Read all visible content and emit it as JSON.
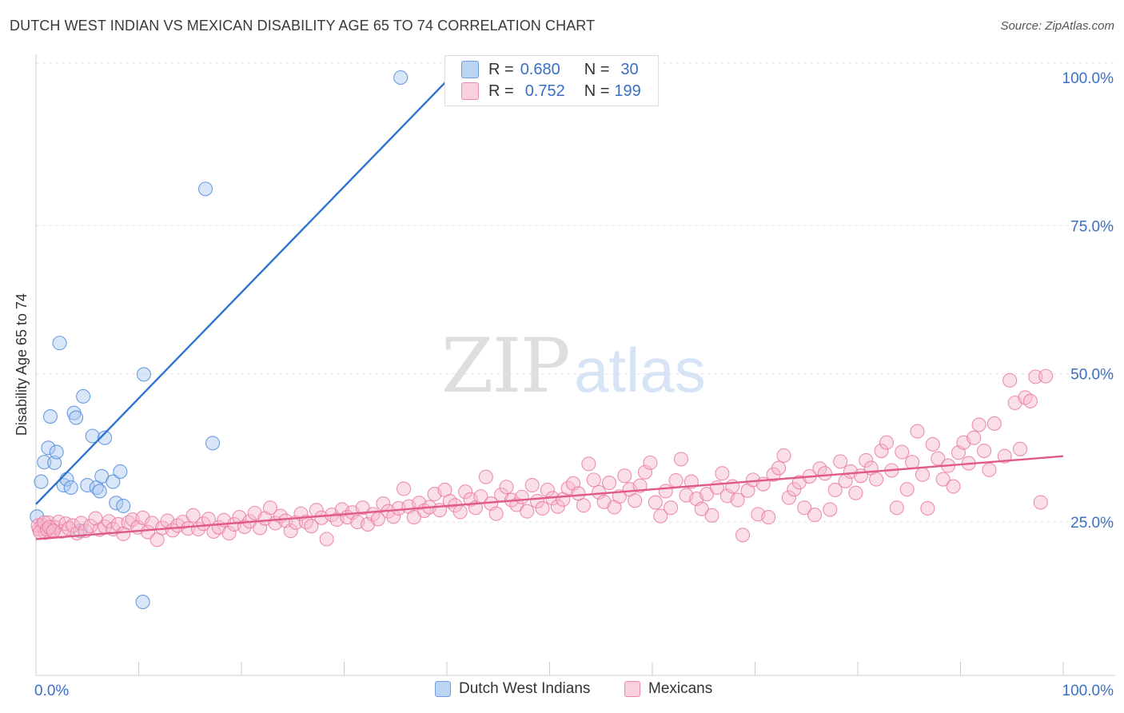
{
  "header": {
    "title": "DUTCH WEST INDIAN VS MEXICAN DISABILITY AGE 65 TO 74 CORRELATION CHART",
    "source": "Source: ZipAtlas.com"
  },
  "watermark": {
    "zip": "ZIP",
    "atlas": "atlas"
  },
  "legend": {
    "rows": [
      {
        "r_label": "R =",
        "r_value": "0.680",
        "n_label": "N =",
        "n_value": "30",
        "color": "#a8c8f0"
      },
      {
        "r_label": "R =",
        "r_value": "0.752",
        "n_label": "N =",
        "n_value": "199",
        "color": "#f7b8cc"
      }
    ]
  },
  "bottom_legend": [
    {
      "label": "Dutch West Indians",
      "color": "#a8c8f0"
    },
    {
      "label": "Mexicans",
      "color": "#f7b8cc"
    }
  ],
  "chart_data": {
    "type": "scatter",
    "ylabel": "Disability Age 65 to 74",
    "xlim": [
      0,
      100
    ],
    "ylim": [
      0,
      100
    ],
    "x_tick_labels": [
      "0.0%",
      "100.0%"
    ],
    "y_ticks": [
      25,
      50,
      75,
      100
    ],
    "y_tick_labels": [
      "25.0%",
      "50.0%",
      "75.0%",
      "100.0%"
    ],
    "grid": true,
    "series": [
      {
        "name": "Dutch West Indians",
        "color": "#4a86d8",
        "line_color": "#2f74d0",
        "trend": {
          "x": [
            0,
            40.3
          ],
          "y": [
            28.0,
            100.0
          ]
        },
        "points": [
          [
            0.5,
            31.8
          ],
          [
            0.8,
            35.1
          ],
          [
            1.2,
            37.5
          ],
          [
            1.4,
            42.8
          ],
          [
            1.8,
            35.0
          ],
          [
            2.0,
            36.8
          ],
          [
            2.3,
            55.2
          ],
          [
            2.7,
            31.2
          ],
          [
            3.0,
            32.2
          ],
          [
            3.4,
            30.8
          ],
          [
            3.7,
            43.4
          ],
          [
            3.9,
            42.6
          ],
          [
            4.3,
            23.5
          ],
          [
            4.6,
            46.2
          ],
          [
            5.0,
            31.2
          ],
          [
            5.5,
            39.5
          ],
          [
            5.9,
            30.8
          ],
          [
            6.2,
            30.2
          ],
          [
            6.4,
            32.7
          ],
          [
            6.7,
            39.2
          ],
          [
            7.5,
            31.8
          ],
          [
            7.8,
            28.2
          ],
          [
            8.2,
            33.5
          ],
          [
            8.5,
            27.7
          ],
          [
            10.5,
            49.9
          ],
          [
            10.4,
            11.5
          ],
          [
            16.5,
            81.2
          ],
          [
            17.2,
            38.3
          ],
          [
            35.5,
            100.0
          ],
          [
            0.1,
            25.9
          ]
        ]
      },
      {
        "name": "Mexicans",
        "color": "#e8779b",
        "line_color": "#e05a88",
        "trend": {
          "x": [
            0,
            100
          ],
          "y": [
            22.1,
            36.1
          ]
        },
        "points": [
          [
            0.3,
            23.8
          ],
          [
            0.6,
            24.5
          ],
          [
            0.9,
            23.2
          ],
          [
            1.2,
            24.9
          ],
          [
            1.5,
            23.6
          ],
          [
            1.9,
            24.1
          ],
          [
            2.2,
            25.0
          ],
          [
            2.5,
            23.4
          ],
          [
            2.9,
            24.7
          ],
          [
            3.2,
            23.9
          ],
          [
            3.6,
            24.4
          ],
          [
            4.0,
            23.1
          ],
          [
            4.4,
            24.8
          ],
          [
            4.8,
            23.5
          ],
          [
            5.3,
            24.3
          ],
          [
            5.8,
            25.6
          ],
          [
            6.2,
            23.7
          ],
          [
            6.7,
            24.2
          ],
          [
            7.1,
            25.1
          ],
          [
            7.5,
            23.8
          ],
          [
            8.0,
            24.6
          ],
          [
            8.5,
            23.0
          ],
          [
            9.0,
            24.9
          ],
          [
            9.4,
            25.4
          ],
          [
            9.9,
            24.1
          ],
          [
            10.4,
            25.7
          ],
          [
            10.9,
            23.3
          ],
          [
            11.3,
            24.8
          ],
          [
            11.8,
            22.0
          ],
          [
            12.3,
            24.0
          ],
          [
            12.8,
            25.2
          ],
          [
            13.3,
            23.6
          ],
          [
            13.8,
            24.4
          ],
          [
            14.3,
            25.0
          ],
          [
            14.8,
            23.9
          ],
          [
            15.3,
            26.1
          ],
          [
            15.8,
            23.8
          ],
          [
            16.3,
            24.7
          ],
          [
            16.8,
            25.5
          ],
          [
            17.3,
            23.4
          ],
          [
            17.8,
            24.1
          ],
          [
            18.3,
            25.3
          ],
          [
            18.8,
            23.1
          ],
          [
            19.3,
            24.6
          ],
          [
            19.8,
            25.8
          ],
          [
            20.3,
            24.2
          ],
          [
            20.8,
            25.1
          ],
          [
            21.3,
            26.5
          ],
          [
            21.8,
            24.0
          ],
          [
            22.3,
            25.6
          ],
          [
            22.8,
            27.4
          ],
          [
            23.3,
            24.8
          ],
          [
            23.8,
            26.0
          ],
          [
            24.3,
            25.2
          ],
          [
            24.8,
            23.5
          ],
          [
            25.3,
            24.9
          ],
          [
            25.8,
            26.4
          ],
          [
            26.3,
            25.0
          ],
          [
            26.8,
            24.3
          ],
          [
            27.3,
            27.0
          ],
          [
            27.8,
            25.7
          ],
          [
            28.3,
            22.1
          ],
          [
            28.8,
            26.2
          ],
          [
            29.3,
            25.4
          ],
          [
            29.8,
            27.1
          ],
          [
            30.3,
            25.8
          ],
          [
            30.8,
            26.6
          ],
          [
            31.3,
            25.0
          ],
          [
            31.8,
            27.4
          ],
          [
            32.3,
            24.6
          ],
          [
            32.8,
            26.3
          ],
          [
            33.3,
            25.5
          ],
          [
            33.8,
            28.1
          ],
          [
            34.3,
            26.8
          ],
          [
            34.8,
            25.9
          ],
          [
            35.3,
            27.3
          ],
          [
            35.8,
            30.6
          ],
          [
            36.3,
            27.6
          ],
          [
            36.8,
            25.8
          ],
          [
            37.3,
            28.2
          ],
          [
            37.8,
            26.9
          ],
          [
            38.3,
            27.5
          ],
          [
            38.8,
            29.7
          ],
          [
            39.3,
            27.0
          ],
          [
            39.8,
            30.4
          ],
          [
            40.3,
            28.5
          ],
          [
            40.8,
            27.8
          ],
          [
            41.3,
            26.7
          ],
          [
            41.8,
            30.1
          ],
          [
            42.3,
            28.8
          ],
          [
            42.8,
            27.4
          ],
          [
            43.3,
            29.3
          ],
          [
            43.8,
            32.6
          ],
          [
            44.3,
            28.1
          ],
          [
            44.8,
            26.4
          ],
          [
            45.3,
            29.6
          ],
          [
            45.8,
            30.9
          ],
          [
            46.3,
            28.7
          ],
          [
            46.8,
            27.9
          ],
          [
            47.3,
            29.2
          ],
          [
            47.8,
            26.8
          ],
          [
            48.3,
            31.2
          ],
          [
            48.8,
            28.5
          ],
          [
            49.3,
            27.3
          ],
          [
            49.8,
            30.4
          ],
          [
            50.3,
            29.0
          ],
          [
            50.8,
            27.6
          ],
          [
            51.3,
            28.8
          ],
          [
            51.8,
            30.7
          ],
          [
            52.3,
            31.5
          ],
          [
            52.8,
            29.8
          ],
          [
            53.3,
            27.8
          ],
          [
            53.8,
            34.8
          ],
          [
            54.3,
            32.1
          ],
          [
            54.8,
            30.0
          ],
          [
            55.3,
            28.4
          ],
          [
            55.8,
            31.6
          ],
          [
            56.3,
            27.5
          ],
          [
            56.8,
            29.3
          ],
          [
            57.3,
            32.8
          ],
          [
            57.8,
            30.5
          ],
          [
            58.3,
            28.6
          ],
          [
            58.8,
            31.1
          ],
          [
            59.3,
            33.4
          ],
          [
            59.8,
            35.0
          ],
          [
            60.3,
            28.3
          ],
          [
            60.8,
            26.0
          ],
          [
            61.3,
            30.2
          ],
          [
            61.8,
            27.4
          ],
          [
            62.3,
            32.0
          ],
          [
            62.8,
            35.6
          ],
          [
            63.3,
            29.5
          ],
          [
            63.8,
            31.8
          ],
          [
            64.3,
            28.9
          ],
          [
            64.8,
            27.2
          ],
          [
            65.3,
            29.7
          ],
          [
            65.8,
            26.1
          ],
          [
            66.3,
            30.8
          ],
          [
            66.8,
            33.2
          ],
          [
            67.3,
            29.4
          ],
          [
            67.8,
            31.0
          ],
          [
            68.3,
            28.7
          ],
          [
            68.8,
            22.8
          ],
          [
            69.3,
            30.3
          ],
          [
            69.8,
            32.1
          ],
          [
            70.3,
            26.3
          ],
          [
            70.8,
            31.4
          ],
          [
            71.3,
            25.8
          ],
          [
            71.8,
            33.0
          ],
          [
            72.3,
            34.1
          ],
          [
            72.8,
            36.2
          ],
          [
            73.3,
            29.1
          ],
          [
            73.8,
            30.5
          ],
          [
            74.3,
            31.7
          ],
          [
            74.8,
            27.4
          ],
          [
            75.3,
            32.7
          ],
          [
            75.8,
            26.2
          ],
          [
            76.3,
            34.0
          ],
          [
            76.8,
            33.2
          ],
          [
            77.3,
            27.1
          ],
          [
            77.8,
            30.4
          ],
          [
            78.3,
            35.2
          ],
          [
            78.8,
            31.9
          ],
          [
            79.3,
            33.5
          ],
          [
            79.8,
            29.9
          ],
          [
            80.3,
            32.8
          ],
          [
            80.8,
            35.4
          ],
          [
            81.3,
            34.1
          ],
          [
            81.8,
            32.2
          ],
          [
            82.3,
            37.0
          ],
          [
            82.8,
            38.4
          ],
          [
            83.3,
            33.7
          ],
          [
            83.8,
            27.4
          ],
          [
            84.3,
            36.8
          ],
          [
            84.8,
            30.5
          ],
          [
            85.3,
            35.1
          ],
          [
            85.8,
            40.3
          ],
          [
            86.3,
            33.0
          ],
          [
            86.8,
            27.3
          ],
          [
            87.3,
            38.1
          ],
          [
            87.8,
            35.7
          ],
          [
            88.3,
            32.2
          ],
          [
            88.8,
            34.5
          ],
          [
            89.3,
            31.0
          ],
          [
            89.8,
            36.7
          ],
          [
            90.3,
            38.4
          ],
          [
            90.8,
            34.9
          ],
          [
            91.3,
            39.2
          ],
          [
            91.8,
            41.4
          ],
          [
            92.3,
            37.0
          ],
          [
            92.8,
            33.8
          ],
          [
            93.3,
            41.6
          ],
          [
            94.3,
            36.1
          ],
          [
            94.8,
            48.9
          ],
          [
            95.3,
            45.1
          ],
          [
            95.8,
            37.3
          ],
          [
            96.3,
            46.0
          ],
          [
            96.8,
            45.4
          ],
          [
            97.3,
            49.5
          ],
          [
            97.8,
            28.3
          ],
          [
            98.3,
            49.6
          ],
          [
            0.2,
            24.4
          ],
          [
            0.4,
            23.3
          ],
          [
            0.8,
            24.9
          ],
          [
            1.1,
            23.7
          ],
          [
            1.3,
            24.1
          ],
          [
            1.7,
            23.5
          ]
        ]
      }
    ]
  }
}
